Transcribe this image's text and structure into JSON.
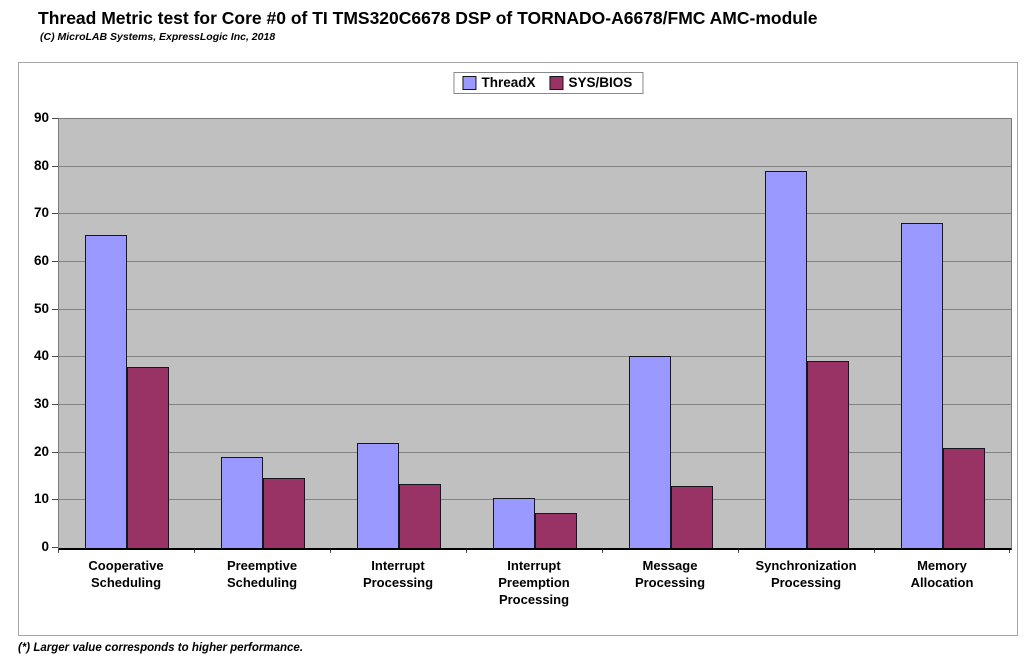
{
  "header": {
    "title": "Thread Metric test for Core #0 of TI TMS320C6678 DSP of TORNADO-A6678/FMC AMC-module",
    "subtitle": "(C) MicroLAB Systems, ExpressLogic Inc, 2018"
  },
  "footer": {
    "note": "(*) Larger value corresponds to higher performance."
  },
  "chart_data": {
    "type": "bar",
    "title": "Thread Metric test for Core #0 of TI TMS320C6678 DSP of TORNADO-A6678/FMC AMC-module",
    "subtitle": "(C) MicroLAB Systems, ExpressLogic Inc, 2018",
    "footnote": "(*) Larger value corresponds to higher performance.",
    "categories": [
      "Cooperative\nScheduling",
      "Preemptive\nScheduling",
      "Interrupt\nProcessing",
      "Interrupt\nPreemption\nProcessing",
      "Message\nProcessing",
      "Synchronization\nProcessing",
      "Memory\nAllocation"
    ],
    "series": [
      {
        "name": "ThreadX",
        "color": "#9999FF",
        "values": [
          65.7,
          19.0,
          22.0,
          10.5,
          40.2,
          79.1,
          68.2
        ]
      },
      {
        "name": "SYS/BIOS",
        "color": "#993366",
        "values": [
          38.0,
          14.7,
          13.4,
          7.4,
          13.0,
          39.2,
          20.9
        ]
      }
    ],
    "xlabel": "",
    "ylabel": "",
    "ylim": [
      0,
      90
    ],
    "ytick_step": 10,
    "grid": true,
    "legend_position": "top-center",
    "plot_bg_color": "#C0C0C0",
    "gridline_color": "#848484",
    "bar_border_color": "#16161d"
  }
}
